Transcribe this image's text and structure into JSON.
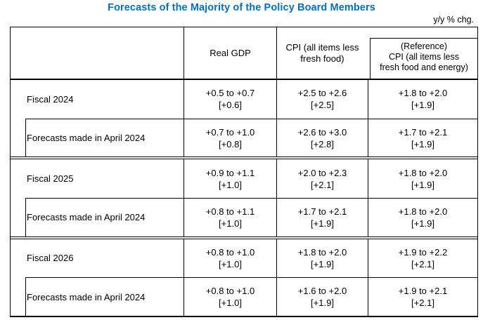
{
  "title": "Forecasts of the Majority of the Policy Board Members",
  "unit_note": "y/y % chg.",
  "colors": {
    "title": "#0070C0",
    "border": "#000000",
    "text": "#000000",
    "background": "#ffffff"
  },
  "table": {
    "header": {
      "real_gdp": "Real GDP",
      "cpi": [
        "CPI (all items less",
        "fresh food)"
      ],
      "reference": [
        "(Reference)",
        "CPI (all items less",
        "fresh food and energy)"
      ]
    },
    "groups": [
      {
        "main": {
          "label": "Fiscal 2024",
          "gdp": [
            "+0.5 to +0.7",
            "[+0.6]"
          ],
          "cpi": [
            "+2.5 to +2.6",
            "[+2.5]"
          ],
          "ref": [
            "+1.8 to +2.0",
            "[+1.9]"
          ]
        },
        "sub": {
          "label": "Forecasts made in April 2024",
          "gdp": [
            "+0.7 to +1.0",
            "[+0.8]"
          ],
          "cpi": [
            "+2.6 to +3.0",
            "[+2.8]"
          ],
          "ref": [
            "+1.7 to +2.1",
            "[+1.9]"
          ]
        }
      },
      {
        "main": {
          "label": "Fiscal 2025",
          "gdp": [
            "+0.9 to +1.1",
            "[+1.0]"
          ],
          "cpi": [
            "+2.0 to +2.3",
            "[+2.1]"
          ],
          "ref": [
            "+1.8 to +2.0",
            "[+1.9]"
          ]
        },
        "sub": {
          "label": "Forecasts made in April 2024",
          "gdp": [
            "+0.8 to +1.1",
            "[+1.0]"
          ],
          "cpi": [
            "+1.7 to +2.1",
            "[+1.9]"
          ],
          "ref": [
            "+1.8 to +2.0",
            "[+1.9]"
          ]
        }
      },
      {
        "main": {
          "label": "Fiscal 2026",
          "gdp": [
            "+0.8 to +1.0",
            "[+1.0]"
          ],
          "cpi": [
            "+1.8 to +2.0",
            "[+1.9]"
          ],
          "ref": [
            "+1.9 to +2.2",
            "[+2.1]"
          ]
        },
        "sub": {
          "label": "Forecasts made in April 2024",
          "gdp": [
            "+0.8 to +1.0",
            "[+1.0]"
          ],
          "cpi": [
            "+1.6 to +2.0",
            "[+1.9]"
          ],
          "ref": [
            "+1.9 to +2.1",
            "[+2.1]"
          ]
        }
      }
    ]
  }
}
